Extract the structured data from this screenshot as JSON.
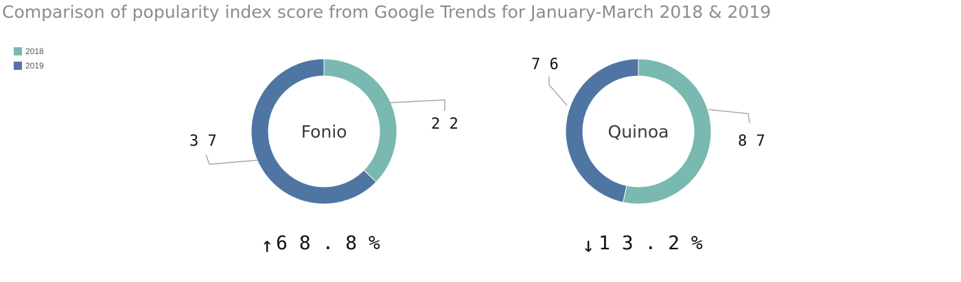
{
  "title": "Comparison of popularity index score from Google Trends for January-March 2018 & 2019",
  "colors": {
    "2018": "#7ab8b2",
    "2019": "#4f75a3",
    "leader": "#a8a8a8"
  },
  "legend": [
    {
      "label": "2018",
      "color": "#7ab8b2"
    },
    {
      "label": "2019",
      "color": "#4f75a3"
    }
  ],
  "chart_data": [
    {
      "type": "pie",
      "donut": true,
      "center_label": "Fonio",
      "categories": [
        "2018",
        "2019"
      ],
      "values": [
        22,
        37
      ],
      "value_labels": [
        "2 2",
        "3 7"
      ],
      "change_arrow": "↑",
      "change_text": "6 8 . 8 %"
    },
    {
      "type": "pie",
      "donut": true,
      "center_label": "Quinoa",
      "categories": [
        "2018",
        "2019"
      ],
      "values": [
        87,
        76
      ],
      "value_labels": [
        "8 7",
        "7 6"
      ],
      "change_arrow": "↓",
      "change_text": "1 3 . 2 %"
    }
  ]
}
